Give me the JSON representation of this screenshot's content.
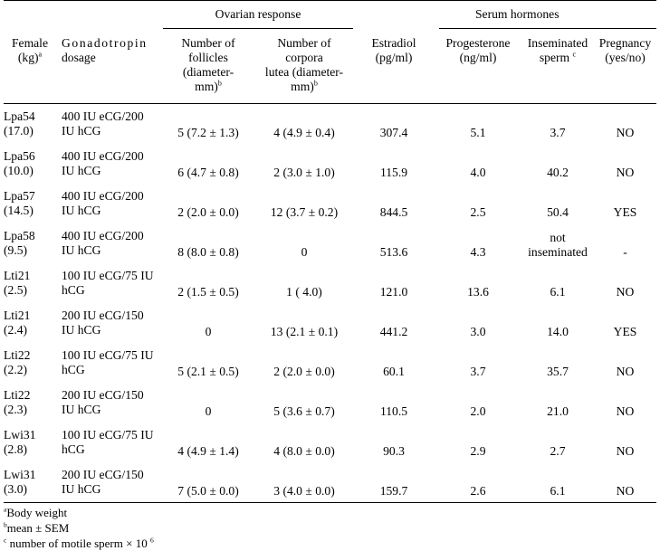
{
  "headers": {
    "ovarian_group": "Ovarian response",
    "serum_group": "Serum hormones",
    "female_line1": "Female",
    "female_line2": "(kg)",
    "female_sup": "a",
    "gonado_line1": "Gonadotropin",
    "gonado_line2": "dosage",
    "follicles_line1": "Number of",
    "follicles_line2": "follicles",
    "follicles_line3": "(diameter-",
    "follicles_line4": "mm)",
    "follicles_sup": "b",
    "corpora_line1": "Number of",
    "corpora_line2": "corpora",
    "corpora_line3": "lutea (diameter-",
    "corpora_line4": "mm)",
    "corpora_sup": "b",
    "estradiol_line1": "Estradiol",
    "estradiol_line2": "(pg/ml)",
    "progesterone_line1": "Progesterone",
    "progesterone_line2": "(ng/ml)",
    "insem_line1": "Inseminated",
    "insem_line2": "sperm",
    "insem_sup": "c",
    "pregnancy_line1": "Pregnancy",
    "pregnancy_line2": "(yes/no)"
  },
  "rows": [
    {
      "id": "Lpa54",
      "weight": "(17.0)",
      "dose1": "400 IU eCG/200",
      "dose2": "IU hCG",
      "follicles": "5 (7.2 ± 1.3)",
      "corpora": "4 (4.9 ± 0.4)",
      "estradiol": "307.4",
      "progesterone": "5.1",
      "sperm": "3.7",
      "pregnancy": "NO"
    },
    {
      "id": "Lpa56",
      "weight": "(10.0)",
      "dose1": "400 IU eCG/200",
      "dose2": "IU hCG",
      "follicles": "6 (4.7 ± 0.8)",
      "corpora": "2 (3.0 ± 1.0)",
      "estradiol": "115.9",
      "progesterone": "4.0",
      "sperm": "40.2",
      "pregnancy": "NO"
    },
    {
      "id": "Lpa57",
      "weight": "(14.5)",
      "dose1": "400 IU eCG/200",
      "dose2": "IU hCG",
      "follicles": "2 (2.0 ± 0.0)",
      "corpora": "12 (3.7 ± 0.2)",
      "estradiol": "844.5",
      "progesterone": "2.5",
      "sperm": "50.4",
      "pregnancy": "YES"
    },
    {
      "id": "Lpa58",
      "weight": "(9.5)",
      "dose1": "400 IU eCG/200",
      "dose2": "IU hCG",
      "follicles": "8 (8.0 ± 0.8)",
      "corpora": "0",
      "estradiol": "513.6",
      "progesterone": "4.3",
      "sperm": "not",
      "sperm2": "inseminated",
      "pregnancy": "-"
    },
    {
      "id": "Lti21",
      "weight": "(2.5)",
      "dose1": "100 IU eCG/75 IU",
      "dose2": "hCG",
      "follicles": "2 (1.5 ± 0.5)",
      "corpora": "1 ( 4.0)",
      "estradiol": "121.0",
      "progesterone": "13.6",
      "sperm": "6.1",
      "pregnancy": "NO"
    },
    {
      "id": "Lti21",
      "weight": "(2.4)",
      "dose1": "200 IU eCG/150",
      "dose2": "IU hCG",
      "follicles": "0",
      "corpora": "13 (2.1 ± 0.1)",
      "estradiol": "441.2",
      "progesterone": "3.0",
      "sperm": "14.0",
      "pregnancy": "YES"
    },
    {
      "id": "Lti22",
      "weight": "(2.2)",
      "dose1": "100 IU eCG/75 IU",
      "dose2": "hCG",
      "follicles": "5 (2.1 ± 0.5)",
      "corpora": "2 (2.0 ± 0.0)",
      "estradiol": "60.1",
      "progesterone": "3.7",
      "sperm": "35.7",
      "pregnancy": "NO"
    },
    {
      "id": "Lti22",
      "weight": "(2.3)",
      "dose1": "200 IU eCG/150",
      "dose2": "IU hCG",
      "follicles": "0",
      "corpora": "5 (3.6 ± 0.7)",
      "estradiol": "110.5",
      "progesterone": "2.0",
      "sperm": "21.0",
      "pregnancy": "NO"
    },
    {
      "id": "Lwi31",
      "weight": "(2.8)",
      "dose1": "100 IU eCG/75 IU",
      "dose2": "hCG",
      "follicles": "4 (4.9 ± 1.4)",
      "corpora": "4 (8.0 ± 0.0)",
      "estradiol": "90.3",
      "progesterone": "2.9",
      "sperm": "2.7",
      "pregnancy": "NO"
    },
    {
      "id": "Lwi31",
      "weight": "(3.0)",
      "dose1": "200 IU eCG/150",
      "dose2": "IU hCG",
      "follicles": "7 (5.0 ± 0.0)",
      "corpora": "3 (4.0 ± 0.0)",
      "estradiol": "159.7",
      "progesterone": "2.6",
      "sperm": "6.1",
      "pregnancy": "NO"
    }
  ],
  "footnotes": {
    "a_mark": "a",
    "a_text": "Body weight",
    "b_mark": "b",
    "b_text": "mean ± SEM",
    "c_mark": "c",
    "c_text": "number of motile sperm × 10",
    "c_exp": "6"
  }
}
